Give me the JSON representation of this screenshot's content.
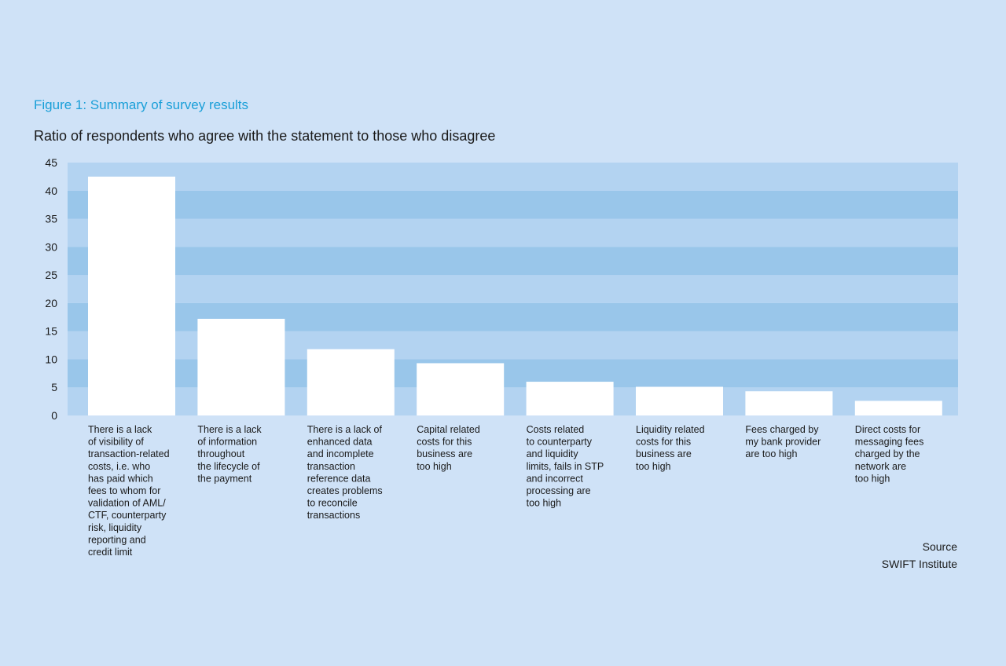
{
  "figure": {
    "title": "Figure 1: Summary of survey results",
    "subtitle": "Ratio of respondents who agree with the statement to those who disagree"
  },
  "source": {
    "label": "Source",
    "name": "SWIFT Institute"
  },
  "colors": {
    "background": "#cfe2f7",
    "band_light": "#b3d3f1",
    "band_dark": "#99c6ea",
    "bar": "#ffffff",
    "title": "#1a9fd8",
    "text": "#1a1a1a"
  },
  "chart_data": {
    "type": "bar",
    "title": "Ratio of respondents who agree with the statement to those who disagree",
    "xlabel": "",
    "ylabel": "",
    "ylim": [
      0,
      45
    ],
    "yticks": [
      0,
      5,
      10,
      15,
      20,
      25,
      30,
      35,
      40,
      45
    ],
    "grid": "alternating horizontal bands",
    "categories": [
      [
        "There is a lack",
        "of visibility of",
        "transaction-related",
        "costs, i.e. who",
        "has paid which",
        "fees to whom for",
        "validation of AML/",
        "CTF, counterparty",
        "risk, liquidity",
        "reporting and",
        "credit limit"
      ],
      [
        "There is a lack",
        "of information",
        "throughout",
        "the lifecycle of",
        "the payment"
      ],
      [
        "There is a lack of",
        "enhanced data",
        "and incomplete",
        "transaction",
        "reference data",
        "creates problems",
        "to reconcile",
        "transactions"
      ],
      [
        "Capital related",
        "costs for this",
        "business are",
        "too high"
      ],
      [
        "Costs related",
        "to counterparty",
        "and liquidity",
        "limits, fails in STP",
        "and incorrect",
        "processing are",
        "too high"
      ],
      [
        "Liquidity related",
        "costs for this",
        "business are",
        "too high"
      ],
      [
        "Fees charged by",
        "my bank provider",
        "are too high"
      ],
      [
        "Direct costs for",
        "messaging fees",
        "charged by the",
        "network are",
        "too high"
      ]
    ],
    "values": [
      42.5,
      17.2,
      11.8,
      9.3,
      6.0,
      5.1,
      4.3,
      2.6
    ]
  }
}
